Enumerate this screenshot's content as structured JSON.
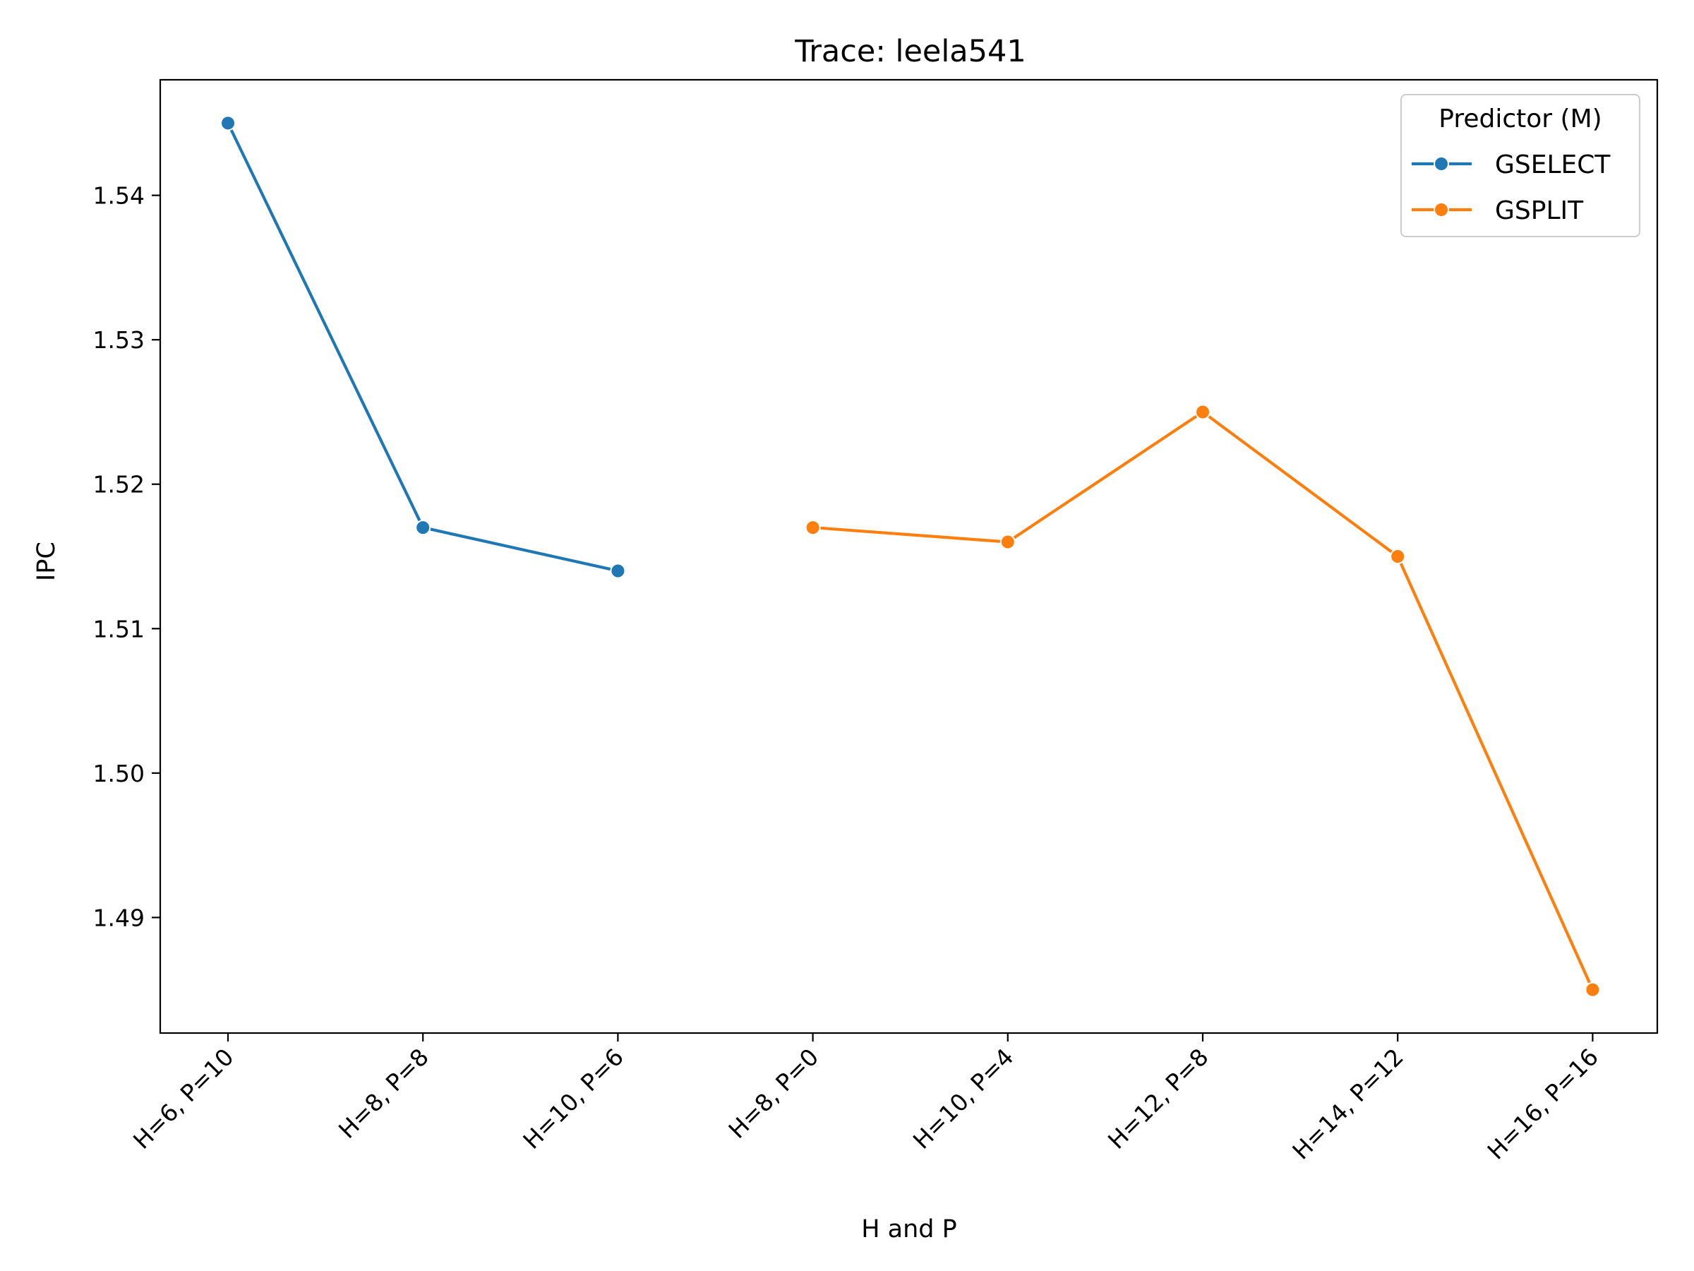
{
  "chart_data": {
    "type": "line",
    "title": "Trace: leela541",
    "xlabel": "H and P",
    "ylabel": "IPC",
    "categories": [
      "H=6, P=10",
      "H=8, P=8",
      "H=10, P=6",
      "H=8, P=0",
      "H=10, P=4",
      "H=12, P=8",
      "H=14, P=12",
      "H=16, P=16"
    ],
    "ylim": [
      1.482,
      1.548
    ],
    "yticks": [
      1.49,
      1.5,
      1.51,
      1.52,
      1.53,
      1.54
    ],
    "ytick_labels": [
      "1.49",
      "1.50",
      "1.51",
      "1.52",
      "1.53",
      "1.54"
    ],
    "grid": false,
    "legend": {
      "title": "Predictor (M)",
      "placement": "top-right"
    },
    "series": [
      {
        "name": "GSELECT",
        "color": "#1f77b4",
        "x": [
          "H=6, P=10",
          "H=8, P=8",
          "H=10, P=6"
        ],
        "values": [
          1.545,
          1.517,
          1.514
        ]
      },
      {
        "name": "GSPLIT",
        "color": "#ff7f0e",
        "x": [
          "H=8, P=0",
          "H=10, P=4",
          "H=12, P=8",
          "H=14, P=12",
          "H=16, P=16"
        ],
        "values": [
          1.517,
          1.516,
          1.525,
          1.515,
          1.485
        ]
      }
    ]
  }
}
